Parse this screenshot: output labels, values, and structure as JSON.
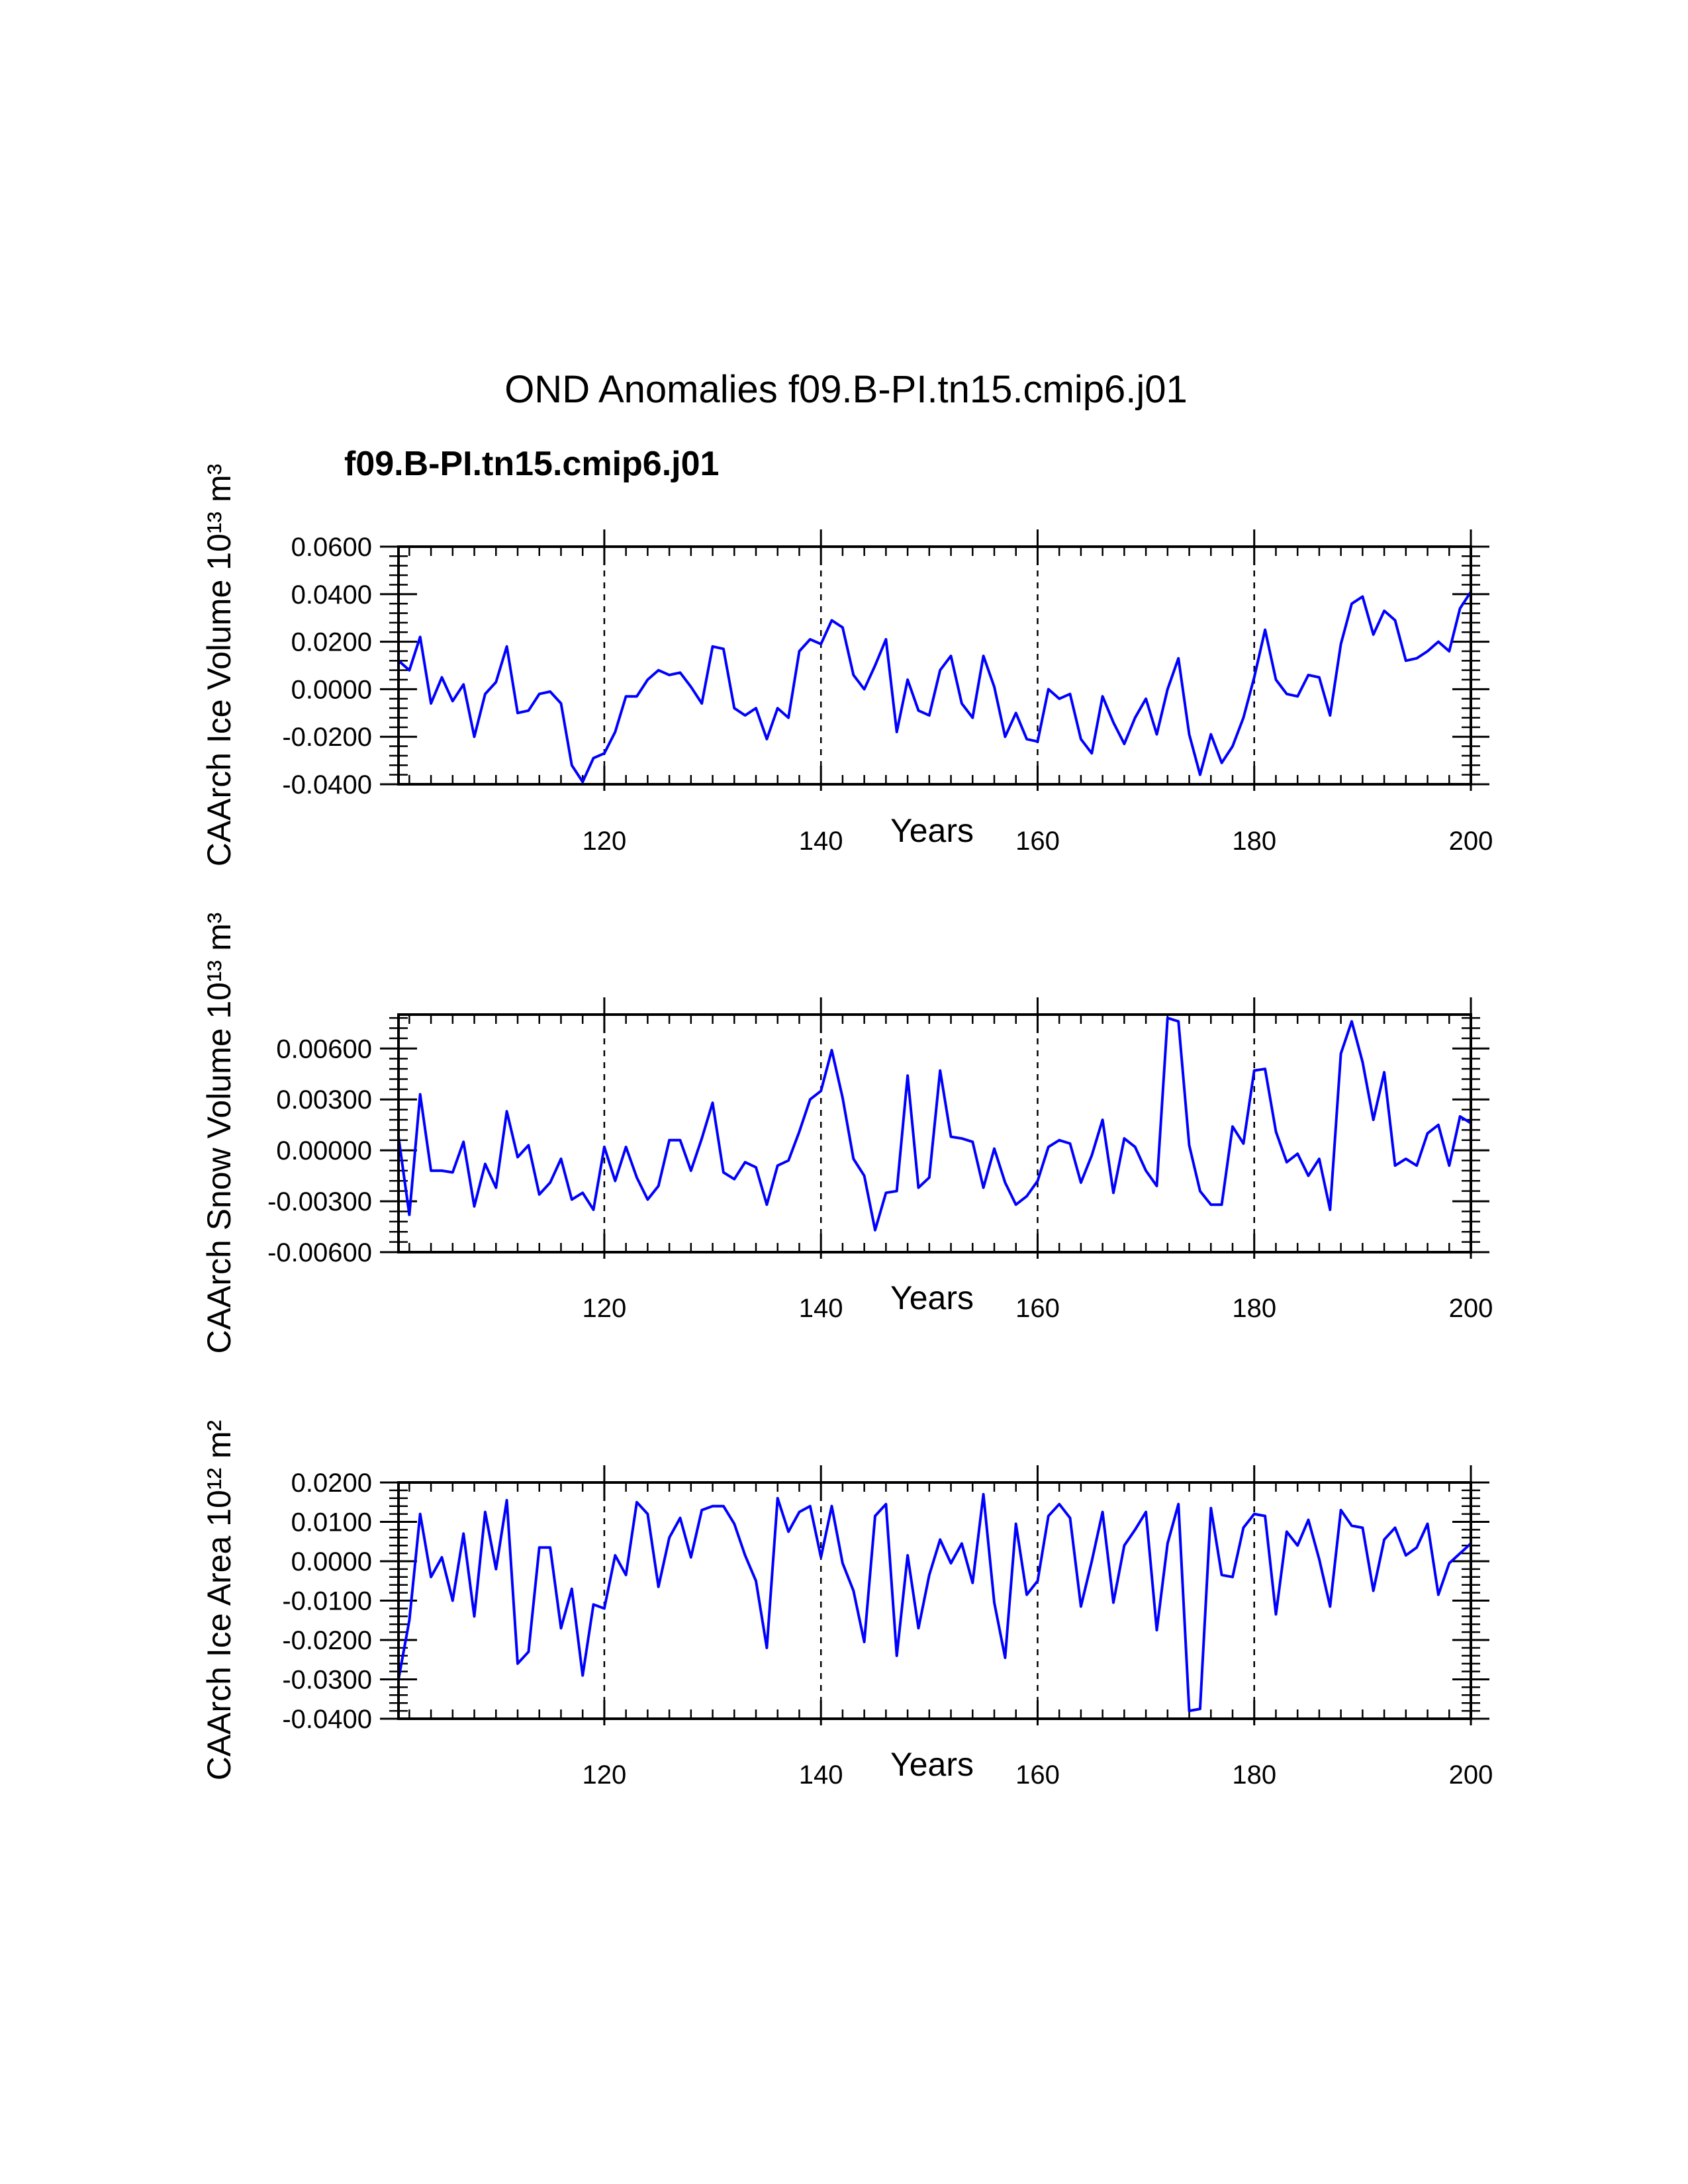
{
  "page": {
    "title": "OND Anomalies f09.B-PI.tn15.cmip6.j01",
    "subtitle": "f09.B-PI.tn15.cmip6.j01"
  },
  "colors": {
    "series": "#0000ff",
    "subtitle": "#0000ff",
    "axes": "#000000"
  },
  "chart_data": [
    {
      "type": "line",
      "name": "ice-volume",
      "xlabel": "Years",
      "ylabel": "CAArch Ice Volume",
      "ylabel_unit": "10¹³ m³",
      "xlim": [
        101,
        200
      ],
      "ylim": [
        -0.04,
        0.06
      ],
      "xticks": [
        120,
        140,
        160,
        180,
        200
      ],
      "yticks": [
        -0.04,
        -0.02,
        0.0,
        0.02,
        0.04,
        0.06
      ],
      "ytick_labels": [
        "-0.0400",
        "-0.0200",
        "0.0000",
        "0.0200",
        "0.0400",
        "0.0600"
      ],
      "vlines": [
        120,
        140,
        160,
        180
      ],
      "x": [
        101,
        102,
        103,
        104,
        105,
        106,
        107,
        108,
        109,
        110,
        111,
        112,
        113,
        114,
        115,
        116,
        117,
        118,
        119,
        120,
        121,
        122,
        123,
        124,
        125,
        126,
        127,
        128,
        129,
        130,
        131,
        132,
        133,
        134,
        135,
        136,
        137,
        138,
        139,
        140,
        141,
        142,
        143,
        144,
        145,
        146,
        147,
        148,
        149,
        150,
        151,
        152,
        153,
        154,
        155,
        156,
        157,
        158,
        159,
        160,
        161,
        162,
        163,
        164,
        165,
        166,
        167,
        168,
        169,
        170,
        171,
        172,
        173,
        174,
        175,
        176,
        177,
        178,
        179,
        180,
        181,
        182,
        183,
        184,
        185,
        186,
        187,
        188,
        189,
        190,
        191,
        192,
        193,
        194,
        195,
        196,
        197,
        198,
        199,
        200
      ],
      "values": [
        0.012,
        0.008,
        0.022,
        -0.006,
        0.005,
        -0.005,
        0.002,
        -0.02,
        -0.002,
        0.003,
        0.018,
        -0.01,
        -0.009,
        -0.002,
        -0.001,
        -0.006,
        -0.032,
        -0.039,
        -0.029,
        -0.027,
        -0.018,
        -0.003,
        -0.003,
        0.004,
        0.008,
        0.006,
        0.007,
        0.001,
        -0.006,
        0.018,
        0.017,
        -0.008,
        -0.011,
        -0.008,
        -0.021,
        -0.008,
        -0.012,
        0.016,
        0.021,
        0.019,
        0.029,
        0.026,
        0.006,
        0.0,
        0.01,
        0.021,
        -0.018,
        0.004,
        -0.009,
        -0.011,
        0.008,
        0.014,
        -0.006,
        -0.012,
        0.014,
        0.001,
        -0.02,
        -0.01,
        -0.021,
        -0.022,
        0.0,
        -0.004,
        -0.002,
        -0.021,
        -0.027,
        -0.003,
        -0.014,
        -0.023,
        -0.012,
        -0.004,
        -0.019,
        0.0,
        0.013,
        -0.019,
        -0.036,
        -0.019,
        -0.031,
        -0.024,
        -0.012,
        0.005,
        0.025,
        0.004,
        -0.002,
        -0.003,
        0.006,
        0.005,
        -0.011,
        0.019,
        0.036,
        0.039,
        0.023,
        0.033,
        0.029,
        0.012,
        0.013,
        0.016,
        0.02,
        0.016,
        0.034,
        0.041
      ]
    },
    {
      "type": "line",
      "name": "snow-volume",
      "xlabel": "Years",
      "ylabel": "CAArch Snow Volume",
      "ylabel_unit": "10¹³ m³",
      "xlim": [
        101,
        200
      ],
      "ylim": [
        -0.006,
        0.008
      ],
      "xticks": [
        120,
        140,
        160,
        180,
        200
      ],
      "yticks": [
        -0.006,
        -0.003,
        0.0,
        0.003,
        0.006
      ],
      "ytick_labels": [
        "-0.00600",
        "-0.00300",
        "0.00000",
        "0.00300",
        "0.00600"
      ],
      "vlines": [
        120,
        140,
        160,
        180
      ],
      "x": [
        101,
        102,
        103,
        104,
        105,
        106,
        107,
        108,
        109,
        110,
        111,
        112,
        113,
        114,
        115,
        116,
        117,
        118,
        119,
        120,
        121,
        122,
        123,
        124,
        125,
        126,
        127,
        128,
        129,
        130,
        131,
        132,
        133,
        134,
        135,
        136,
        137,
        138,
        139,
        140,
        141,
        142,
        143,
        144,
        145,
        146,
        147,
        148,
        149,
        150,
        151,
        152,
        153,
        154,
        155,
        156,
        157,
        158,
        159,
        160,
        161,
        162,
        163,
        164,
        165,
        166,
        167,
        168,
        169,
        170,
        171,
        172,
        173,
        174,
        175,
        176,
        177,
        178,
        179,
        180,
        181,
        182,
        183,
        184,
        185,
        186,
        187,
        188,
        189,
        190,
        191,
        192,
        193,
        194,
        195,
        196,
        197,
        198,
        199,
        200
      ],
      "values": [
        0.0008,
        -0.0038,
        0.0033,
        -0.0012,
        -0.0012,
        -0.0013,
        0.0005,
        -0.0033,
        -0.0008,
        -0.0022,
        0.0023,
        -0.0004,
        0.0003,
        -0.0026,
        -0.0019,
        -0.0005,
        -0.0029,
        -0.0025,
        -0.0035,
        0.0002,
        -0.0018,
        0.0002,
        -0.0016,
        -0.0029,
        -0.0021,
        0.0006,
        0.0006,
        -0.0012,
        0.0007,
        0.0028,
        -0.0013,
        -0.0017,
        -0.0007,
        -0.001,
        -0.0032,
        -0.0009,
        -0.0006,
        0.0011,
        0.003,
        0.0035,
        0.0059,
        0.0031,
        -0.0005,
        -0.0015,
        -0.0047,
        -0.0025,
        -0.0024,
        0.0044,
        -0.0022,
        -0.0016,
        0.0047,
        0.0008,
        0.0007,
        0.0005,
        -0.0022,
        0.0001,
        -0.0019,
        -0.0032,
        -0.0027,
        -0.0018,
        0.0002,
        0.0006,
        0.0004,
        -0.0019,
        -0.0003,
        0.0018,
        -0.0025,
        0.0007,
        0.0002,
        -0.0012,
        -0.0021,
        0.0078,
        0.0076,
        0.0003,
        -0.0024,
        -0.0032,
        -0.0032,
        0.0014,
        0.0004,
        0.0047,
        0.0048,
        0.0011,
        -0.0007,
        -0.0002,
        -0.0015,
        -0.0005,
        -0.0035,
        0.0057,
        0.0076,
        0.0052,
        0.0018,
        0.0046,
        -0.0009,
        -0.0005,
        -0.0009,
        0.001,
        0.0015,
        -0.0009,
        0.002,
        0.0016
      ]
    },
    {
      "type": "line",
      "name": "ice-area",
      "xlabel": "Years",
      "ylabel": "CAArch Ice Area",
      "ylabel_unit": "10¹² m²",
      "xlim": [
        101,
        200
      ],
      "ylim": [
        -0.04,
        0.02
      ],
      "xticks": [
        120,
        140,
        160,
        180,
        200
      ],
      "yticks": [
        -0.04,
        -0.03,
        -0.02,
        -0.01,
        0.0,
        0.01,
        0.02
      ],
      "ytick_labels": [
        "-0.0400",
        "-0.0300",
        "-0.0200",
        "-0.0100",
        "0.0000",
        "0.0100",
        "0.0200"
      ],
      "vlines": [
        120,
        140,
        160,
        180
      ],
      "x": [
        101,
        102,
        103,
        104,
        105,
        106,
        107,
        108,
        109,
        110,
        111,
        112,
        113,
        114,
        115,
        116,
        117,
        118,
        119,
        120,
        121,
        122,
        123,
        124,
        125,
        126,
        127,
        128,
        129,
        130,
        131,
        132,
        133,
        134,
        135,
        136,
        137,
        138,
        139,
        140,
        141,
        142,
        143,
        144,
        145,
        146,
        147,
        148,
        149,
        150,
        151,
        152,
        153,
        154,
        155,
        156,
        157,
        158,
        159,
        160,
        161,
        162,
        163,
        164,
        165,
        166,
        167,
        168,
        169,
        170,
        171,
        172,
        173,
        174,
        175,
        176,
        177,
        178,
        179,
        180,
        181,
        182,
        183,
        184,
        185,
        186,
        187,
        188,
        189,
        190,
        191,
        192,
        193,
        194,
        195,
        196,
        197,
        198,
        199,
        200
      ],
      "values": [
        -0.03,
        -0.015,
        0.012,
        -0.004,
        0.001,
        -0.01,
        0.007,
        -0.014,
        0.0125,
        -0.002,
        0.0155,
        -0.026,
        -0.023,
        0.0035,
        0.0035,
        -0.017,
        -0.007,
        -0.029,
        -0.011,
        -0.012,
        0.0015,
        -0.0035,
        0.015,
        0.012,
        -0.0065,
        0.006,
        0.011,
        0.001,
        0.013,
        0.014,
        0.014,
        0.0095,
        0.0015,
        -0.005,
        -0.022,
        0.016,
        0.0075,
        0.0125,
        0.014,
        0.001,
        0.014,
        -0.0005,
        -0.0075,
        -0.0205,
        0.0115,
        0.0145,
        -0.024,
        0.0015,
        -0.017,
        -0.0035,
        0.0055,
        -0.0005,
        0.0045,
        -0.0055,
        0.017,
        -0.0105,
        -0.0245,
        0.0095,
        -0.0085,
        -0.005,
        0.0115,
        0.0145,
        0.011,
        -0.0115,
        0.0,
        0.0125,
        -0.0105,
        0.004,
        0.008,
        0.0125,
        -0.0175,
        0.0045,
        0.0145,
        -0.038,
        -0.0375,
        0.0135,
        -0.0035,
        -0.004,
        0.0085,
        0.012,
        0.0115,
        -0.0135,
        0.0075,
        0.004,
        0.0105,
        0.0005,
        -0.0115,
        0.013,
        0.009,
        0.0085,
        -0.0075,
        0.0055,
        0.0085,
        0.0015,
        0.0035,
        0.0095,
        -0.0085,
        -0.0005,
        0.002,
        0.0045
      ]
    }
  ]
}
